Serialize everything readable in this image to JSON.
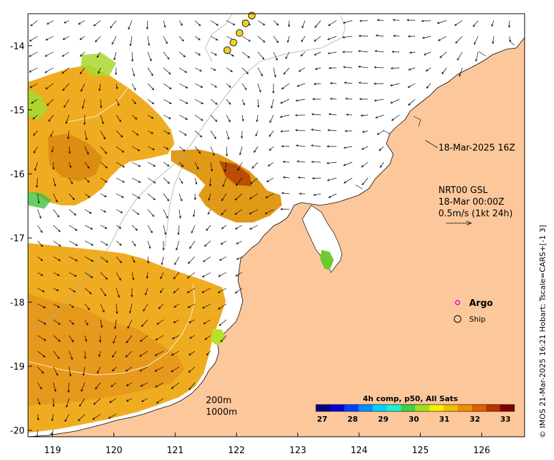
{
  "map": {
    "x_ticks": [
      "119",
      "120",
      "121",
      "122",
      "123",
      "124",
      "125",
      "126"
    ],
    "y_ticks": [
      "-14",
      "-15",
      "-16",
      "-17",
      "-18",
      "-19",
      "-20"
    ],
    "lon_range": [
      118.6,
      126.7
    ],
    "lat_range": [
      -20.1,
      -13.5
    ],
    "land_color": "#fcc89b",
    "sea_color": "#ffffff"
  },
  "annotations": {
    "time_label": "18-Mar-2025 16Z",
    "product_line1": "NRT00 GSL",
    "product_line2": "18-Mar 00:00Z",
    "product_line3": "0.5m/s (1kt 24h)",
    "isobath_200": "200m",
    "isobath_1000": "1000m"
  },
  "legend": {
    "argo_label": "Argo",
    "ship_label": "Ship",
    "argo_color": "#e000e0"
  },
  "colorbar": {
    "title": "4h comp, p50, All Sats",
    "ticks": [
      "27",
      "28",
      "29",
      "30",
      "31",
      "32",
      "33"
    ],
    "colors": [
      "#00007f",
      "#0000d0",
      "#0040ff",
      "#0090ff",
      "#00d0ff",
      "#20f0d0",
      "#40d040",
      "#a0e020",
      "#f0f000",
      "#f0c000",
      "#f09000",
      "#e06000",
      "#c03000",
      "#800000"
    ]
  },
  "credit": "© IMOS 21-Mar-2025 16:21 Hobart; Tscale=CARS+[-1 3]",
  "buoys": [
    {
      "lon": 122.25,
      "lat": -13.53
    },
    {
      "lon": 122.15,
      "lat": -13.65
    },
    {
      "lon": 122.05,
      "lat": -13.8
    },
    {
      "lon": 121.95,
      "lat": -13.95
    },
    {
      "lon": 121.85,
      "lat": -14.07
    }
  ]
}
